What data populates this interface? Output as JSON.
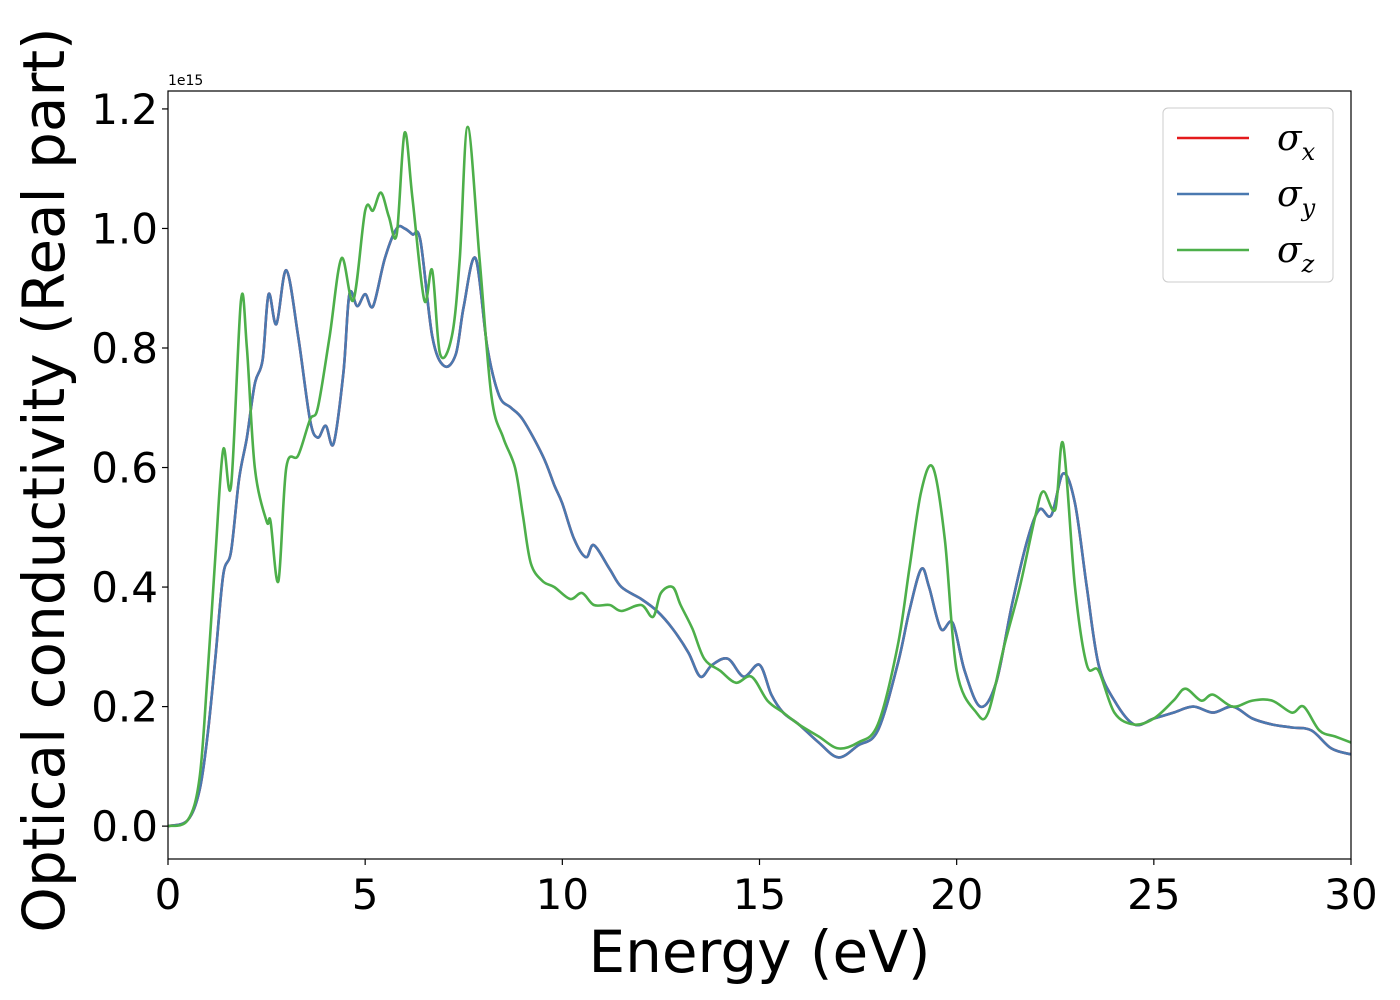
{
  "chart_data": {
    "type": "line",
    "xlabel": "Energy (eV)",
    "ylabel": "Optical conductivity (Real part)",
    "y_offset_label": "1e15",
    "xlim": [
      0,
      30
    ],
    "ylim": [
      -0.055,
      1.23
    ],
    "x_ticks": [
      "0",
      "5",
      "10",
      "15",
      "20",
      "25",
      "30"
    ],
    "y_ticks": [
      "0.0",
      "0.2",
      "0.4",
      "0.6",
      "0.8",
      "1.0",
      "1.2"
    ],
    "grid": false,
    "legend_position": "top-right",
    "series": [
      {
        "name": "σx",
        "sym": "σ",
        "sub": "x",
        "color": "#e41a1c",
        "points": [
          [
            0,
            0
          ],
          [
            0.5,
            0.01
          ],
          [
            0.8,
            0.06
          ],
          [
            1.0,
            0.15
          ],
          [
            1.2,
            0.28
          ],
          [
            1.4,
            0.42
          ],
          [
            1.6,
            0.46
          ],
          [
            1.8,
            0.58
          ],
          [
            2.0,
            0.65
          ],
          [
            2.2,
            0.74
          ],
          [
            2.4,
            0.78
          ],
          [
            2.55,
            0.89
          ],
          [
            2.75,
            0.84
          ],
          [
            3.0,
            0.93
          ],
          [
            3.3,
            0.82
          ],
          [
            3.6,
            0.68
          ],
          [
            3.8,
            0.65
          ],
          [
            4.0,
            0.67
          ],
          [
            4.2,
            0.64
          ],
          [
            4.45,
            0.76
          ],
          [
            4.6,
            0.89
          ],
          [
            4.8,
            0.87
          ],
          [
            5.0,
            0.89
          ],
          [
            5.2,
            0.87
          ],
          [
            5.5,
            0.95
          ],
          [
            5.8,
            1.0
          ],
          [
            6.0,
            1.0
          ],
          [
            6.2,
            0.99
          ],
          [
            6.4,
            0.98
          ],
          [
            6.7,
            0.82
          ],
          [
            7.0,
            0.77
          ],
          [
            7.3,
            0.79
          ],
          [
            7.5,
            0.87
          ],
          [
            7.8,
            0.95
          ],
          [
            8.1,
            0.8
          ],
          [
            8.4,
            0.72
          ],
          [
            8.7,
            0.7
          ],
          [
            9.0,
            0.68
          ],
          [
            9.5,
            0.62
          ],
          [
            9.8,
            0.57
          ],
          [
            10.0,
            0.54
          ],
          [
            10.3,
            0.48
          ],
          [
            10.6,
            0.45
          ],
          [
            10.8,
            0.47
          ],
          [
            11.2,
            0.43
          ],
          [
            11.5,
            0.4
          ],
          [
            12.0,
            0.38
          ],
          [
            12.4,
            0.36
          ],
          [
            12.8,
            0.33
          ],
          [
            13.2,
            0.29
          ],
          [
            13.5,
            0.25
          ],
          [
            13.8,
            0.27
          ],
          [
            14.2,
            0.28
          ],
          [
            14.6,
            0.25
          ],
          [
            15.0,
            0.27
          ],
          [
            15.3,
            0.22
          ],
          [
            15.6,
            0.19
          ],
          [
            16.0,
            0.17
          ],
          [
            16.5,
            0.14
          ],
          [
            17.0,
            0.115
          ],
          [
            17.5,
            0.135
          ],
          [
            18.0,
            0.16
          ],
          [
            18.5,
            0.27
          ],
          [
            18.8,
            0.36
          ],
          [
            19.1,
            0.43
          ],
          [
            19.3,
            0.4
          ],
          [
            19.6,
            0.33
          ],
          [
            19.9,
            0.34
          ],
          [
            20.2,
            0.26
          ],
          [
            20.6,
            0.2
          ],
          [
            21.0,
            0.24
          ],
          [
            21.4,
            0.37
          ],
          [
            21.8,
            0.48
          ],
          [
            22.1,
            0.53
          ],
          [
            22.4,
            0.52
          ],
          [
            22.7,
            0.59
          ],
          [
            23.0,
            0.54
          ],
          [
            23.3,
            0.4
          ],
          [
            23.6,
            0.27
          ],
          [
            24.0,
            0.21
          ],
          [
            24.5,
            0.17
          ],
          [
            25.0,
            0.18
          ],
          [
            25.5,
            0.19
          ],
          [
            26.0,
            0.2
          ],
          [
            26.5,
            0.19
          ],
          [
            27.0,
            0.2
          ],
          [
            27.5,
            0.18
          ],
          [
            28.0,
            0.17
          ],
          [
            28.5,
            0.165
          ],
          [
            29.0,
            0.16
          ],
          [
            29.5,
            0.13
          ],
          [
            30.0,
            0.12
          ]
        ]
      },
      {
        "name": "σy",
        "sym": "σ",
        "sub": "y",
        "color": "#4a79b0",
        "points": [
          [
            0,
            0
          ],
          [
            0.5,
            0.01
          ],
          [
            0.8,
            0.06
          ],
          [
            1.0,
            0.15
          ],
          [
            1.2,
            0.28
          ],
          [
            1.4,
            0.42
          ],
          [
            1.6,
            0.46
          ],
          [
            1.8,
            0.58
          ],
          [
            2.0,
            0.65
          ],
          [
            2.2,
            0.74
          ],
          [
            2.4,
            0.78
          ],
          [
            2.55,
            0.89
          ],
          [
            2.75,
            0.84
          ],
          [
            3.0,
            0.93
          ],
          [
            3.3,
            0.82
          ],
          [
            3.6,
            0.68
          ],
          [
            3.8,
            0.65
          ],
          [
            4.0,
            0.67
          ],
          [
            4.2,
            0.64
          ],
          [
            4.45,
            0.76
          ],
          [
            4.6,
            0.89
          ],
          [
            4.8,
            0.87
          ],
          [
            5.0,
            0.89
          ],
          [
            5.2,
            0.87
          ],
          [
            5.5,
            0.95
          ],
          [
            5.8,
            1.0
          ],
          [
            6.0,
            1.0
          ],
          [
            6.2,
            0.99
          ],
          [
            6.4,
            0.98
          ],
          [
            6.7,
            0.82
          ],
          [
            7.0,
            0.77
          ],
          [
            7.3,
            0.79
          ],
          [
            7.5,
            0.87
          ],
          [
            7.8,
            0.95
          ],
          [
            8.1,
            0.8
          ],
          [
            8.4,
            0.72
          ],
          [
            8.7,
            0.7
          ],
          [
            9.0,
            0.68
          ],
          [
            9.5,
            0.62
          ],
          [
            9.8,
            0.57
          ],
          [
            10.0,
            0.54
          ],
          [
            10.3,
            0.48
          ],
          [
            10.6,
            0.45
          ],
          [
            10.8,
            0.47
          ],
          [
            11.2,
            0.43
          ],
          [
            11.5,
            0.4
          ],
          [
            12.0,
            0.38
          ],
          [
            12.4,
            0.36
          ],
          [
            12.8,
            0.33
          ],
          [
            13.2,
            0.29
          ],
          [
            13.5,
            0.25
          ],
          [
            13.8,
            0.27
          ],
          [
            14.2,
            0.28
          ],
          [
            14.6,
            0.25
          ],
          [
            15.0,
            0.27
          ],
          [
            15.3,
            0.22
          ],
          [
            15.6,
            0.19
          ],
          [
            16.0,
            0.17
          ],
          [
            16.5,
            0.14
          ],
          [
            17.0,
            0.115
          ],
          [
            17.5,
            0.135
          ],
          [
            18.0,
            0.16
          ],
          [
            18.5,
            0.27
          ],
          [
            18.8,
            0.36
          ],
          [
            19.1,
            0.43
          ],
          [
            19.3,
            0.4
          ],
          [
            19.6,
            0.33
          ],
          [
            19.9,
            0.34
          ],
          [
            20.2,
            0.26
          ],
          [
            20.6,
            0.2
          ],
          [
            21.0,
            0.24
          ],
          [
            21.4,
            0.37
          ],
          [
            21.8,
            0.48
          ],
          [
            22.1,
            0.53
          ],
          [
            22.4,
            0.52
          ],
          [
            22.7,
            0.59
          ],
          [
            23.0,
            0.54
          ],
          [
            23.3,
            0.4
          ],
          [
            23.6,
            0.27
          ],
          [
            24.0,
            0.21
          ],
          [
            24.5,
            0.17
          ],
          [
            25.0,
            0.18
          ],
          [
            25.5,
            0.19
          ],
          [
            26.0,
            0.2
          ],
          [
            26.5,
            0.19
          ],
          [
            27.0,
            0.2
          ],
          [
            27.5,
            0.18
          ],
          [
            28.0,
            0.17
          ],
          [
            28.5,
            0.165
          ],
          [
            29.0,
            0.16
          ],
          [
            29.5,
            0.13
          ],
          [
            30.0,
            0.12
          ]
        ]
      },
      {
        "name": "σz",
        "sym": "σ",
        "sub": "z",
        "color": "#4daf4a",
        "points": [
          [
            0,
            0
          ],
          [
            0.5,
            0.01
          ],
          [
            0.8,
            0.08
          ],
          [
            1.0,
            0.25
          ],
          [
            1.2,
            0.45
          ],
          [
            1.4,
            0.63
          ],
          [
            1.6,
            0.57
          ],
          [
            1.85,
            0.88
          ],
          [
            2.0,
            0.8
          ],
          [
            2.2,
            0.6
          ],
          [
            2.5,
            0.51
          ],
          [
            2.6,
            0.51
          ],
          [
            2.8,
            0.41
          ],
          [
            3.0,
            0.6
          ],
          [
            3.3,
            0.62
          ],
          [
            3.6,
            0.68
          ],
          [
            3.8,
            0.7
          ],
          [
            4.1,
            0.82
          ],
          [
            4.4,
            0.95
          ],
          [
            4.7,
            0.88
          ],
          [
            5.0,
            1.03
          ],
          [
            5.2,
            1.03
          ],
          [
            5.4,
            1.06
          ],
          [
            5.6,
            1.02
          ],
          [
            5.8,
            0.99
          ],
          [
            6.0,
            1.16
          ],
          [
            6.2,
            1.05
          ],
          [
            6.5,
            0.88
          ],
          [
            6.7,
            0.93
          ],
          [
            6.9,
            0.79
          ],
          [
            7.2,
            0.82
          ],
          [
            7.4,
            0.95
          ],
          [
            7.6,
            1.17
          ],
          [
            7.9,
            0.95
          ],
          [
            8.2,
            0.72
          ],
          [
            8.5,
            0.65
          ],
          [
            8.8,
            0.6
          ],
          [
            9.0,
            0.52
          ],
          [
            9.2,
            0.44
          ],
          [
            9.5,
            0.41
          ],
          [
            9.8,
            0.4
          ],
          [
            10.2,
            0.38
          ],
          [
            10.5,
            0.39
          ],
          [
            10.8,
            0.37
          ],
          [
            11.2,
            0.37
          ],
          [
            11.5,
            0.36
          ],
          [
            12.0,
            0.37
          ],
          [
            12.3,
            0.35
          ],
          [
            12.5,
            0.39
          ],
          [
            12.8,
            0.4
          ],
          [
            13.0,
            0.37
          ],
          [
            13.3,
            0.33
          ],
          [
            13.6,
            0.28
          ],
          [
            14.0,
            0.26
          ],
          [
            14.4,
            0.24
          ],
          [
            14.8,
            0.25
          ],
          [
            15.2,
            0.21
          ],
          [
            15.6,
            0.19
          ],
          [
            16.0,
            0.17
          ],
          [
            16.5,
            0.15
          ],
          [
            17.0,
            0.13
          ],
          [
            17.5,
            0.14
          ],
          [
            18.0,
            0.17
          ],
          [
            18.5,
            0.3
          ],
          [
            18.8,
            0.43
          ],
          [
            19.1,
            0.56
          ],
          [
            19.4,
            0.6
          ],
          [
            19.7,
            0.48
          ],
          [
            20.0,
            0.26
          ],
          [
            20.5,
            0.19
          ],
          [
            20.8,
            0.19
          ],
          [
            21.2,
            0.3
          ],
          [
            21.6,
            0.4
          ],
          [
            22.0,
            0.52
          ],
          [
            22.2,
            0.56
          ],
          [
            22.5,
            0.53
          ],
          [
            22.7,
            0.64
          ],
          [
            23.0,
            0.4
          ],
          [
            23.3,
            0.27
          ],
          [
            23.6,
            0.26
          ],
          [
            24.0,
            0.19
          ],
          [
            24.5,
            0.17
          ],
          [
            25.0,
            0.18
          ],
          [
            25.5,
            0.21
          ],
          [
            25.8,
            0.23
          ],
          [
            26.2,
            0.21
          ],
          [
            26.5,
            0.22
          ],
          [
            27.0,
            0.2
          ],
          [
            27.5,
            0.21
          ],
          [
            28.0,
            0.21
          ],
          [
            28.5,
            0.19
          ],
          [
            28.8,
            0.2
          ],
          [
            29.2,
            0.16
          ],
          [
            29.6,
            0.15
          ],
          [
            30.0,
            0.14
          ]
        ]
      }
    ]
  }
}
